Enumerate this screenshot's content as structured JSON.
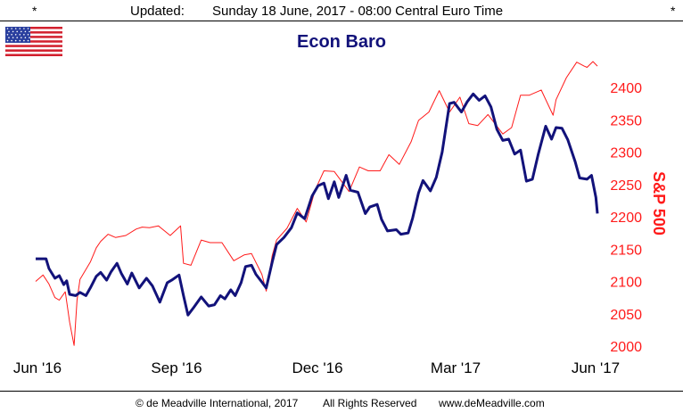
{
  "header": {
    "left_marker": "*",
    "right_marker": "*",
    "updated_label": "Updated:",
    "updated_value": "Sunday 18 June, 2017 - 08:00 Central Euro Time"
  },
  "footer": {
    "copyright": "© de Meadville International, 2017",
    "rights": "All Rights Reserved",
    "website": "www.deMeadville.com"
  },
  "colors": {
    "econ_baro": "#12127a",
    "sp500": "#ff1a1a",
    "flag_red": "#d2202e",
    "flag_blue": "#2a3f9e"
  },
  "chart_data": {
    "type": "line",
    "title": "Econ Baro",
    "ylabel_right": "S&P 500",
    "x_range": [
      "2016-06-01",
      "2017-06-16"
    ],
    "x_ticks": [
      {
        "date": "2016-06-01",
        "label": "Jun '16"
      },
      {
        "date": "2016-09-01",
        "label": "Sep '16"
      },
      {
        "date": "2016-12-01",
        "label": "Dec '16"
      },
      {
        "date": "2017-03-01",
        "label": "Mar '17"
      },
      {
        "date": "2017-06-01",
        "label": "Jun '17"
      }
    ],
    "y_right_range": [
      2000,
      2450
    ],
    "y_right_ticks": [
      2000,
      2050,
      2100,
      2150,
      2200,
      2250,
      2300,
      2350,
      2400
    ],
    "grid": false,
    "series": [
      {
        "name": "S&P 500",
        "axis": "right",
        "points": [
          [
            "2016-06-01",
            2100
          ],
          [
            "2016-06-06",
            2110
          ],
          [
            "2016-06-10",
            2096
          ],
          [
            "2016-06-14",
            2075
          ],
          [
            "2016-06-17",
            2071
          ],
          [
            "2016-06-21",
            2084
          ],
          [
            "2016-06-24",
            2037
          ],
          [
            "2016-06-27",
            2001
          ],
          [
            "2016-06-29",
            2071
          ],
          [
            "2016-07-01",
            2103
          ],
          [
            "2016-07-08",
            2130
          ],
          [
            "2016-07-12",
            2152
          ],
          [
            "2016-07-15",
            2162
          ],
          [
            "2016-07-20",
            2173
          ],
          [
            "2016-07-25",
            2168
          ],
          [
            "2016-08-01",
            2171
          ],
          [
            "2016-08-08",
            2181
          ],
          [
            "2016-08-12",
            2184
          ],
          [
            "2016-08-17",
            2183
          ],
          [
            "2016-08-23",
            2186
          ],
          [
            "2016-08-31",
            2171
          ],
          [
            "2016-09-07",
            2186
          ],
          [
            "2016-09-09",
            2128
          ],
          [
            "2016-09-14",
            2125
          ],
          [
            "2016-09-21",
            2164
          ],
          [
            "2016-09-27",
            2160
          ],
          [
            "2016-10-05",
            2160
          ],
          [
            "2016-10-13",
            2132
          ],
          [
            "2016-10-20",
            2141
          ],
          [
            "2016-10-25",
            2143
          ],
          [
            "2016-11-01",
            2111
          ],
          [
            "2016-11-04",
            2085
          ],
          [
            "2016-11-08",
            2140
          ],
          [
            "2016-11-11",
            2164
          ],
          [
            "2016-11-18",
            2182
          ],
          [
            "2016-11-25",
            2213
          ],
          [
            "2016-12-01",
            2192
          ],
          [
            "2016-12-07",
            2241
          ],
          [
            "2016-12-13",
            2271
          ],
          [
            "2016-12-20",
            2270
          ],
          [
            "2016-12-30",
            2239
          ],
          [
            "2017-01-06",
            2277
          ],
          [
            "2017-01-12",
            2271
          ],
          [
            "2017-01-20",
            2271
          ],
          [
            "2017-01-26",
            2296
          ],
          [
            "2017-02-02",
            2281
          ],
          [
            "2017-02-10",
            2316
          ],
          [
            "2017-02-15",
            2349
          ],
          [
            "2017-02-22",
            2362
          ],
          [
            "2017-03-01",
            2395
          ],
          [
            "2017-03-08",
            2362
          ],
          [
            "2017-03-15",
            2385
          ],
          [
            "2017-03-21",
            2344
          ],
          [
            "2017-03-27",
            2341
          ],
          [
            "2017-04-03",
            2358
          ],
          [
            "2017-04-13",
            2328
          ],
          [
            "2017-04-19",
            2338
          ],
          [
            "2017-04-25",
            2388
          ],
          [
            "2017-05-01",
            2388
          ],
          [
            "2017-05-09",
            2396
          ],
          [
            "2017-05-17",
            2357
          ],
          [
            "2017-05-19",
            2381
          ],
          [
            "2017-05-26",
            2415
          ],
          [
            "2017-06-02",
            2439
          ],
          [
            "2017-06-07",
            2433
          ],
          [
            "2017-06-09",
            2431
          ],
          [
            "2017-06-13",
            2440
          ],
          [
            "2017-06-16",
            2433
          ]
        ]
      },
      {
        "name": "Econ Baro",
        "axis": "left",
        "unit_note": "left axis is unlabelled; values expressed on the S&P scale at matching height",
        "points": [
          [
            "2016-06-01",
            2135
          ],
          [
            "2016-06-08",
            2135
          ],
          [
            "2016-06-10",
            2120
          ],
          [
            "2016-06-14",
            2105
          ],
          [
            "2016-06-17",
            2109
          ],
          [
            "2016-06-20",
            2095
          ],
          [
            "2016-06-22",
            2101
          ],
          [
            "2016-06-24",
            2080
          ],
          [
            "2016-06-28",
            2078
          ],
          [
            "2016-07-01",
            2083
          ],
          [
            "2016-07-05",
            2078
          ],
          [
            "2016-07-08",
            2090
          ],
          [
            "2016-07-12",
            2108
          ],
          [
            "2016-07-15",
            2114
          ],
          [
            "2016-07-19",
            2102
          ],
          [
            "2016-07-22",
            2115
          ],
          [
            "2016-07-26",
            2128
          ],
          [
            "2016-07-29",
            2112
          ],
          [
            "2016-08-02",
            2096
          ],
          [
            "2016-08-05",
            2113
          ],
          [
            "2016-08-10",
            2090
          ],
          [
            "2016-08-15",
            2105
          ],
          [
            "2016-08-19",
            2093
          ],
          [
            "2016-08-24",
            2068
          ],
          [
            "2016-08-29",
            2098
          ],
          [
            "2016-09-01",
            2102
          ],
          [
            "2016-09-06",
            2110
          ],
          [
            "2016-09-09",
            2078
          ],
          [
            "2016-09-12",
            2048
          ],
          [
            "2016-09-16",
            2060
          ],
          [
            "2016-09-21",
            2076
          ],
          [
            "2016-09-26",
            2062
          ],
          [
            "2016-09-30",
            2064
          ],
          [
            "2016-10-04",
            2078
          ],
          [
            "2016-10-07",
            2073
          ],
          [
            "2016-10-11",
            2087
          ],
          [
            "2016-10-14",
            2078
          ],
          [
            "2016-10-18",
            2098
          ],
          [
            "2016-10-21",
            2123
          ],
          [
            "2016-10-25",
            2125
          ],
          [
            "2016-10-28",
            2111
          ],
          [
            "2016-11-01",
            2099
          ],
          [
            "2016-11-04",
            2090
          ],
          [
            "2016-11-08",
            2130
          ],
          [
            "2016-11-11",
            2157
          ],
          [
            "2016-11-16",
            2168
          ],
          [
            "2016-11-21",
            2183
          ],
          [
            "2016-11-25",
            2206
          ],
          [
            "2016-11-30",
            2197
          ],
          [
            "2016-12-05",
            2232
          ],
          [
            "2016-12-09",
            2248
          ],
          [
            "2016-12-13",
            2252
          ],
          [
            "2016-12-16",
            2228
          ],
          [
            "2016-12-20",
            2254
          ],
          [
            "2016-12-23",
            2230
          ],
          [
            "2016-12-28",
            2264
          ],
          [
            "2016-12-31",
            2241
          ],
          [
            "2017-01-05",
            2238
          ],
          [
            "2017-01-10",
            2205
          ],
          [
            "2017-01-13",
            2215
          ],
          [
            "2017-01-18",
            2219
          ],
          [
            "2017-01-21",
            2196
          ],
          [
            "2017-01-25",
            2178
          ],
          [
            "2017-01-31",
            2180
          ],
          [
            "2017-02-03",
            2173
          ],
          [
            "2017-02-08",
            2175
          ],
          [
            "2017-02-11",
            2198
          ],
          [
            "2017-02-15",
            2237
          ],
          [
            "2017-02-18",
            2256
          ],
          [
            "2017-02-23",
            2240
          ],
          [
            "2017-02-27",
            2261
          ],
          [
            "2017-03-03",
            2300
          ],
          [
            "2017-03-08",
            2375
          ],
          [
            "2017-03-11",
            2377
          ],
          [
            "2017-03-16",
            2362
          ],
          [
            "2017-03-20",
            2378
          ],
          [
            "2017-03-24",
            2390
          ],
          [
            "2017-03-28",
            2380
          ],
          [
            "2017-04-01",
            2387
          ],
          [
            "2017-04-05",
            2370
          ],
          [
            "2017-04-09",
            2335
          ],
          [
            "2017-04-13",
            2318
          ],
          [
            "2017-04-17",
            2320
          ],
          [
            "2017-04-21",
            2297
          ],
          [
            "2017-04-25",
            2303
          ],
          [
            "2017-04-29",
            2255
          ],
          [
            "2017-05-03",
            2258
          ],
          [
            "2017-05-07",
            2297
          ],
          [
            "2017-05-12",
            2340
          ],
          [
            "2017-05-16",
            2320
          ],
          [
            "2017-05-19",
            2338
          ],
          [
            "2017-05-23",
            2337
          ],
          [
            "2017-05-27",
            2319
          ],
          [
            "2017-06-01",
            2285
          ],
          [
            "2017-06-04",
            2260
          ],
          [
            "2017-06-09",
            2258
          ],
          [
            "2017-06-12",
            2264
          ],
          [
            "2017-06-15",
            2230
          ],
          [
            "2017-06-16",
            2205
          ]
        ]
      }
    ]
  }
}
